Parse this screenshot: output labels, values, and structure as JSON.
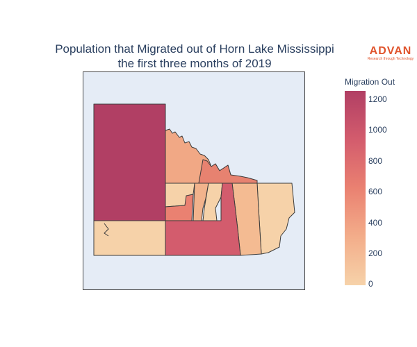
{
  "title": {
    "line1": "Population that Migrated out of Horn Lake Mississippi",
    "line2": "the first three months of 2019"
  },
  "logo": {
    "name": "ADVAN",
    "tagline": "Research through Technology"
  },
  "colorbar": {
    "title": "Migration Out",
    "ticks": [
      "1200",
      "1000",
      "800",
      "600",
      "400",
      "200",
      "0"
    ],
    "min": 0,
    "max": 1270,
    "colors": [
      "#f6d2a9",
      "#f3ad8a",
      "#ea8171",
      "#d35c6d",
      "#b13f64"
    ]
  },
  "map": {
    "background": "#e5ecf6",
    "region_count": 9
  }
}
